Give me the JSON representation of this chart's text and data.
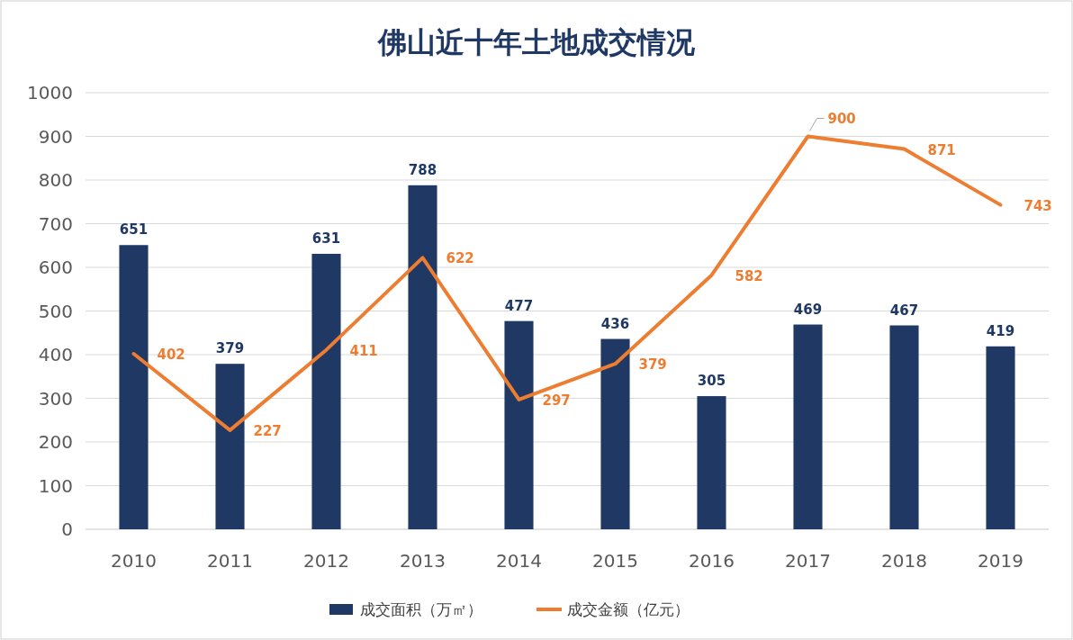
{
  "chart_data": {
    "type": "bar",
    "title": "佛山近十年土地成交情况",
    "categories": [
      "2010",
      "2011",
      "2012",
      "2013",
      "2014",
      "2015",
      "2016",
      "2017",
      "2018",
      "2019"
    ],
    "series": [
      {
        "name": "成交面积（万㎡）",
        "color": "#1f3864",
        "values": [
          651,
          379,
          631,
          788,
          477,
          436,
          305,
          469,
          467,
          419
        ]
      },
      {
        "name": "成交金额（亿元）",
        "type": "line",
        "color": "#ed7d31",
        "values": [
          402,
          227,
          411,
          622,
          297,
          379,
          582,
          900,
          871,
          743
        ]
      }
    ],
    "ylim": [
      0,
      1000
    ],
    "yticks": [
      0,
      100,
      200,
      300,
      400,
      500,
      600,
      700,
      800,
      900,
      1000
    ],
    "grid": "y",
    "legend": "bottom",
    "data_labels": true
  }
}
